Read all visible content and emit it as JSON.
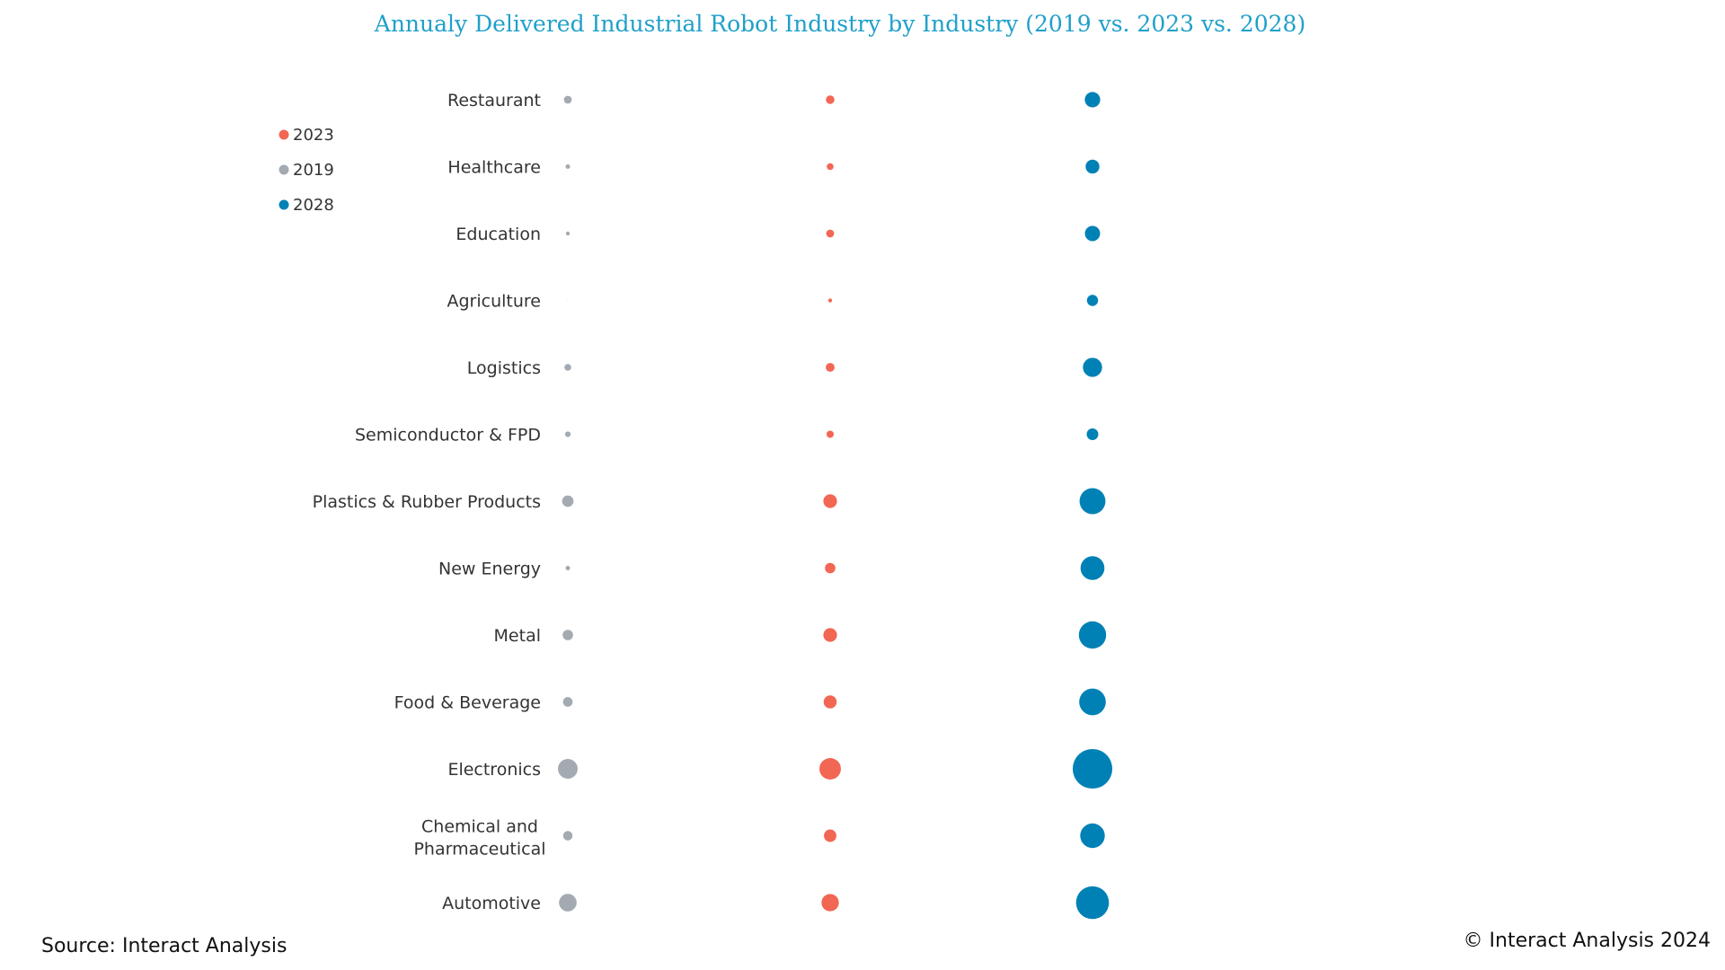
{
  "chart_data": {
    "type": "bubble",
    "title": "Annualy Delivered Industrial Robot Industry by Industry (2019 vs. 2023 vs. 2028)",
    "categories": [
      "Restaurant",
      "Healthcare",
      "Education",
      "Agriculture",
      "Logistics",
      "Semiconductor & FPD",
      "Plastics & Rubber Products",
      "New Energy",
      "Metal",
      "Food & Beverage",
      "Electronics",
      "Chemical and Pharmaceutical",
      "Automotive"
    ],
    "series": [
      {
        "name": "2019",
        "color": "#a3aab1",
        "values": [
          12,
          4,
          3,
          0,
          9,
          6,
          25,
          4,
          21,
          18,
          75,
          17,
          60
        ]
      },
      {
        "name": "2023",
        "color": "#f26654",
        "values": [
          14,
          9,
          12,
          3,
          15,
          10,
          36,
          21,
          36,
          33,
          89,
          30,
          58
        ]
      },
      {
        "name": "2028",
        "color": "#0081b5",
        "values": [
          46,
          37,
          45,
          24,
          71,
          26,
          130,
          110,
          144,
          137,
          303,
          117,
          209
        ]
      }
    ],
    "legend": {
      "placement": "top-left",
      "order": [
        "2023",
        "2019",
        "2028"
      ]
    },
    "axes": "hidden",
    "grid": false
  },
  "footer": {
    "source": "Source: Interact Analysis",
    "copyright": "© Interact Analysis 2024"
  }
}
